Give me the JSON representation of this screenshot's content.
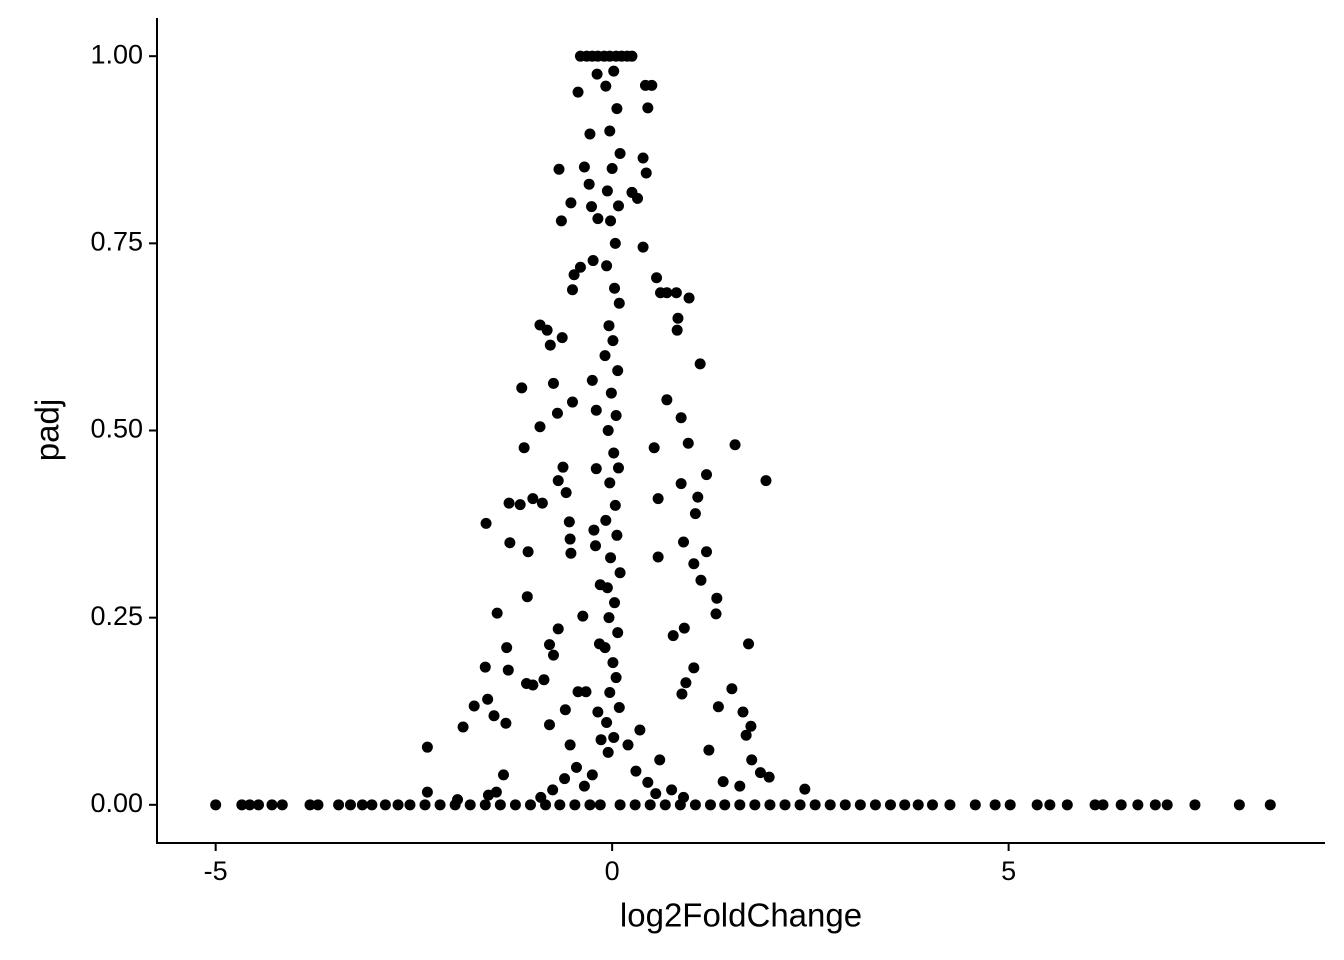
{
  "chart_data": {
    "type": "scatter",
    "x_label": "log2FoldChange",
    "y_label": "padj",
    "color": "#000000",
    "xlim": [
      -5.74,
      8.99
    ],
    "ylim": [
      -0.051,
      1.051
    ],
    "xticks": [
      -5,
      0,
      5
    ],
    "yticks": [
      {
        "value": 0,
        "label": "0.00"
      },
      {
        "value": 0.25,
        "label": "0.25"
      },
      {
        "value": 0.5,
        "label": "0.50"
      },
      {
        "value": 0.75,
        "label": "0.75"
      },
      {
        "value": 1,
        "label": "1.00"
      }
    ],
    "x": [
      -5.0,
      -4.67,
      -4.57,
      -4.46,
      -4.29,
      -4.16,
      -3.81,
      -3.71,
      -3.45,
      -3.3,
      -3.15,
      -3.03,
      -2.86,
      -2.7,
      -2.55,
      -2.36,
      -2.17,
      -1.98,
      -1.79,
      -1.6,
      -1.41,
      -1.22,
      -1.03,
      -0.84,
      -0.66,
      -0.47,
      -0.28,
      -0.15,
      0.1,
      0.29,
      0.48,
      0.67,
      0.86,
      1.05,
      1.24,
      1.42,
      1.61,
      1.8,
      1.99,
      2.18,
      2.37,
      2.56,
      2.75,
      2.94,
      3.13,
      3.32,
      3.51,
      3.69,
      3.86,
      4.04,
      4.26,
      4.58,
      4.83,
      5.02,
      5.36,
      5.52,
      5.74,
      6.09,
      6.19,
      6.42,
      6.63,
      6.85,
      7.0,
      7.35,
      7.91,
      8.3,
      -0.4,
      -0.32,
      -0.25,
      -0.18,
      -0.1,
      -0.03,
      0.05,
      0.12,
      0.19,
      0.25,
      0.02,
      -0.08,
      0.06,
      -0.03,
      0.1,
      0.0,
      -0.06,
      0.08,
      -0.02,
      0.04,
      -0.07,
      0.03,
      0.09,
      -0.04,
      0.01,
      -0.09,
      0.07,
      -0.01,
      0.05,
      -0.05,
      0.02,
      0.08,
      -0.03,
      0.04,
      -0.08,
      0.06,
      -0.02,
      0.1,
      -0.06,
      0.03,
      -0.04,
      0.07,
      -0.09,
      0.01,
      0.05,
      -0.03,
      0.09,
      -0.07,
      0.02,
      -0.05,
      -2.33,
      -1.88,
      -1.74,
      -1.59,
      -1.6,
      -1.57,
      -1.49,
      -1.45,
      -1.34,
      -1.33,
      -1.31,
      -1.3,
      -1.29,
      -1.37,
      -1.16,
      -1.14,
      -1.11,
      -1.08,
      -1.07,
      -1.06,
      -1.0,
      -1.0,
      -0.91,
      -0.91,
      -0.88,
      -0.86,
      -0.82,
      -0.78,
      -0.79,
      -0.79,
      -0.74,
      -0.74,
      -0.69,
      -0.68,
      -0.68,
      -0.67,
      -0.64,
      -0.63,
      -0.62,
      -0.59,
      -0.58,
      -0.54,
      -0.53,
      -0.52,
      -0.52,
      -0.53,
      -0.5,
      -0.5,
      -0.48,
      -0.43,
      -0.43,
      -0.4,
      -0.37,
      -0.35,
      -0.33,
      -0.29,
      -0.28,
      -0.26,
      -0.25,
      -0.24,
      -0.23,
      -0.21,
      -0.2,
      -0.19,
      -0.2,
      -0.18,
      -0.18,
      -0.16,
      -0.15,
      -0.14,
      0.42,
      0.5,
      0.45,
      0.39,
      0.43,
      0.25,
      0.32,
      0.39,
      0.56,
      0.61,
      0.69,
      0.81,
      0.97,
      0.83,
      0.82,
      1.11,
      0.69,
      0.87,
      1.55,
      0.96,
      0.53,
      1.94,
      0.87,
      1.19,
      0.58,
      1.08,
      1.05,
      0.9,
      1.19,
      0.58,
      1.03,
      1.12,
      1.32,
      1.31,
      0.91,
      0.77,
      1.72,
      1.03,
      0.93,
      0.88,
      1.51,
      1.34,
      1.65,
      1.75,
      1.69,
      1.22,
      1.76,
      1.87,
      1.98,
      1.4,
      1.61,
      2.43,
      0.3,
      0.45,
      0.6,
      0.75,
      0.2,
      0.35,
      0.55,
      0.9,
      -2.33,
      -1.95,
      -1.56,
      -1.46,
      -0.75,
      -0.6,
      -0.45,
      -0.35,
      -0.25,
      -0.9
    ],
    "values": [
      0,
      0,
      0,
      0,
      0,
      0,
      0,
      0,
      0,
      0,
      0,
      0,
      0,
      0,
      0,
      0,
      0,
      0,
      0,
      0,
      0,
      0,
      0,
      0,
      0,
      0,
      0,
      0,
      0,
      0,
      0,
      0,
      0,
      0,
      0,
      0,
      0,
      0,
      0,
      0,
      0,
      0,
      0,
      0,
      0,
      0,
      0,
      0,
      0,
      0,
      0,
      0,
      0,
      0,
      0,
      0,
      0,
      0,
      0,
      0,
      0,
      0,
      0,
      0,
      0,
      0,
      1,
      1,
      1,
      1,
      1,
      1,
      1,
      1,
      1,
      1,
      0.98,
      0.96,
      0.93,
      0.9,
      0.87,
      0.85,
      0.82,
      0.8,
      0.78,
      0.75,
      0.72,
      0.69,
      0.67,
      0.64,
      0.62,
      0.6,
      0.58,
      0.55,
      0.52,
      0.5,
      0.47,
      0.45,
      0.43,
      0.4,
      0.38,
      0.36,
      0.33,
      0.31,
      0.29,
      0.27,
      0.25,
      0.23,
      0.21,
      0.19,
      0.17,
      0.15,
      0.13,
      0.11,
      0.09,
      0.07,
      0.077,
      0.104,
      0.132,
      0.376,
      0.184,
      0.141,
      0.119,
      0.256,
      0.109,
      0.21,
      0.18,
      0.403,
      0.35,
      0.04,
      0.401,
      0.557,
      0.477,
      0.162,
      0.278,
      0.338,
      0.409,
      0.16,
      0.505,
      0.641,
      0.403,
      0.167,
      0.634,
      0.614,
      0.214,
      0.107,
      0.2,
      0.563,
      0.523,
      0.433,
      0.235,
      0.849,
      0.78,
      0.624,
      0.451,
      0.127,
      0.417,
      0.378,
      0.355,
      0.336,
      0.804,
      0.08,
      0.688,
      0.538,
      0.708,
      0.952,
      0.151,
      0.718,
      0.252,
      0.852,
      0.151,
      0.829,
      0.896,
      0.799,
      0.567,
      0.727,
      0.367,
      0.346,
      0.449,
      0.976,
      0.527,
      0.783,
      0.124,
      0.215,
      0.294,
      0.087,
      0.961,
      0.961,
      0.931,
      0.864,
      0.844,
      0.818,
      0.81,
      0.745,
      0.704,
      0.684,
      0.684,
      0.684,
      0.677,
      0.65,
      0.634,
      0.589,
      0.541,
      0.517,
      0.481,
      0.483,
      0.477,
      0.433,
      0.429,
      0.441,
      0.409,
      0.411,
      0.389,
      0.351,
      0.338,
      0.331,
      0.322,
      0.3,
      0.276,
      0.255,
      0.236,
      0.226,
      0.215,
      0.183,
      0.163,
      0.148,
      0.155,
      0.131,
      0.124,
      0.105,
      0.093,
      0.073,
      0.06,
      0.043,
      0.037,
      0.031,
      0.025,
      0.021,
      0.045,
      0.03,
      0.06,
      0.02,
      0.08,
      0.1,
      0.015,
      0.01,
      0.017,
      0.007,
      0.013,
      0.017,
      0.02,
      0.035,
      0.05,
      0.025,
      0.04,
      0.01
    ]
  }
}
